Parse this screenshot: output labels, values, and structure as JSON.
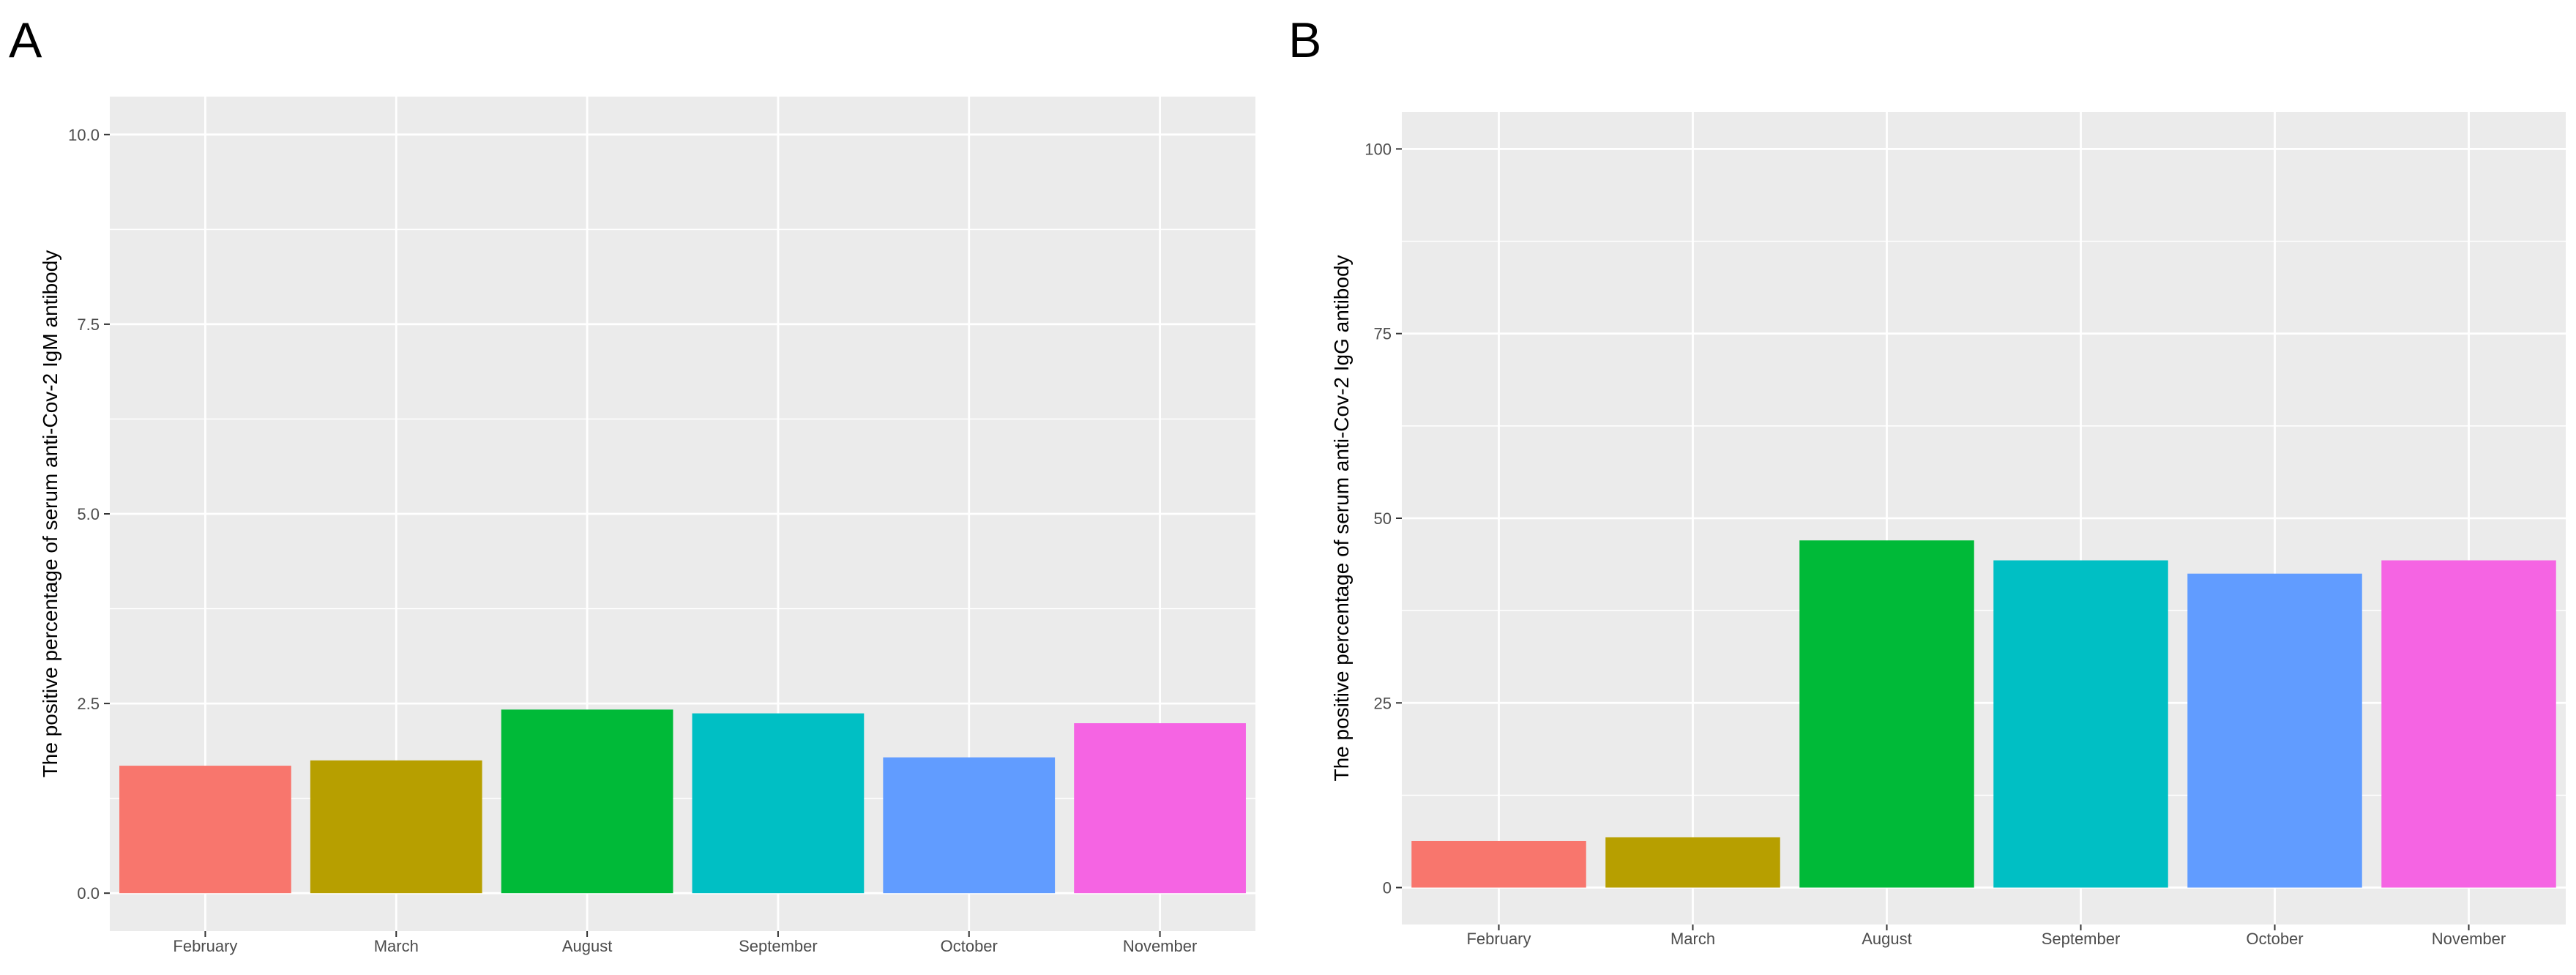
{
  "chart_data": [
    {
      "panel_label": "A",
      "type": "bar",
      "title": "",
      "xlabel": "",
      "ylabel": "The positive percentage of serum anti-Cov-2 IgM antibody",
      "categories": [
        "February",
        "March",
        "August",
        "September",
        "October",
        "November"
      ],
      "values": [
        1.68,
        1.75,
        2.42,
        2.37,
        1.79,
        2.24
      ],
      "colors": [
        "#F8766D",
        "#B79F00",
        "#00BA38",
        "#00BFC4",
        "#619CFF",
        "#F564E3"
      ],
      "ylim": [
        -0.5,
        10.5
      ],
      "yticks": [
        0,
        2.5,
        5,
        7.5,
        10
      ],
      "ytick_labels": [
        "0.0",
        "2.5",
        "5.0",
        "7.5",
        "10.0"
      ],
      "grid": true,
      "panel_background": "#EBEBEB",
      "grid_color": "#FFFFFF"
    },
    {
      "panel_label": "B",
      "type": "bar",
      "title": "",
      "xlabel": "",
      "ylabel": "The positive percentage of serum anti-Cov-2 IgG antibody",
      "categories": [
        "February",
        "March",
        "August",
        "September",
        "October",
        "November"
      ],
      "values": [
        6.3,
        6.8,
        47.0,
        44.3,
        42.5,
        44.3
      ],
      "colors": [
        "#F8766D",
        "#B79F00",
        "#00BA38",
        "#00BFC4",
        "#619CFF",
        "#F564E3"
      ],
      "ylim": [
        -5,
        105
      ],
      "yticks": [
        0,
        25,
        50,
        75,
        100
      ],
      "ytick_labels": [
        "0",
        "25",
        "50",
        "75",
        "100"
      ],
      "grid": true,
      "panel_background": "#EBEBEB",
      "grid_color": "#FFFFFF"
    }
  ]
}
